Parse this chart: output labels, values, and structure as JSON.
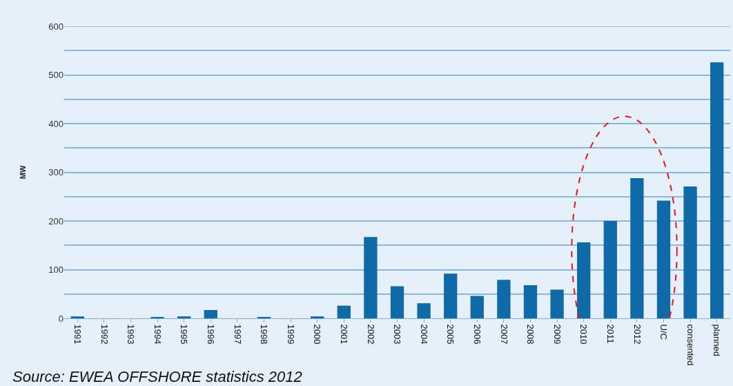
{
  "chart_data": {
    "type": "bar",
    "categories": [
      "1991",
      "1992",
      "1993",
      "1994",
      "1995",
      "1996",
      "1997",
      "1998",
      "1999",
      "2000",
      "2001",
      "2002",
      "2003",
      "2004",
      "2005",
      "2006",
      "2007",
      "2008",
      "2009",
      "2010",
      "2011",
      "2012",
      "U/C",
      "consented",
      "planned"
    ],
    "values": [
      4,
      0,
      0,
      2,
      4,
      17,
      0,
      2,
      0,
      4,
      26,
      167,
      66,
      31,
      92,
      46,
      79,
      68,
      59,
      156,
      200,
      288,
      242,
      271,
      526
    ],
    "color": "#106aa8",
    "ylabel": "MW",
    "ylim": [
      0,
      600
    ],
    "yticks": [
      0,
      {
        "value": 50,
        "label": null
      },
      100,
      {
        "value": 150,
        "label": null
      },
      200,
      {
        "value": 250,
        "label": null
      },
      300,
      {
        "value": 350,
        "label": null
      },
      400,
      {
        "value": 450,
        "label": null
      },
      500,
      {
        "value": 550,
        "label": null
      },
      600
    ],
    "grid": "y",
    "annotations": [
      "Source: EWEA OFFSHORE statistics 2012"
    ]
  }
}
